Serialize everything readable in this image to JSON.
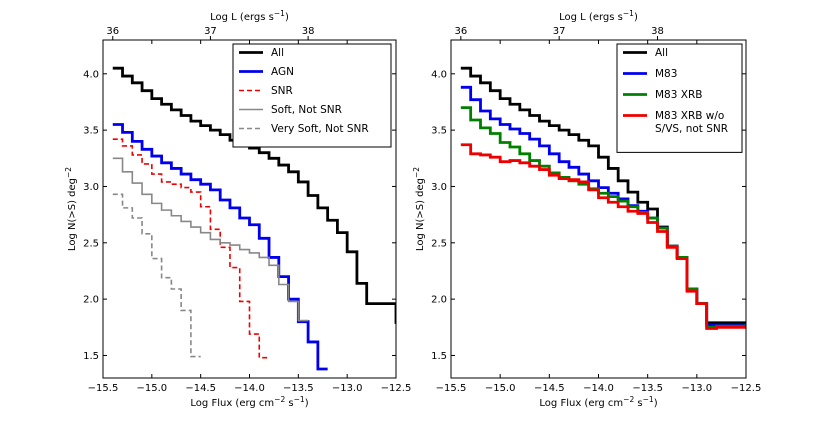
{
  "chart_data": [
    {
      "type": "line",
      "panel": "left",
      "xlabel": "Log Flux (erg cm$^{-2}$ s$^{-1}$)",
      "xlabel_parts": [
        "Log Flux (erg cm",
        "−2",
        " s",
        "−1",
        ")"
      ],
      "ylabel_parts": [
        "Log N(>S) deg",
        "−2"
      ],
      "top_xlabel_parts": [
        "Log L (ergs s",
        "−1",
        ")"
      ],
      "xlim": [
        -15.5,
        -12.5
      ],
      "ylim": [
        1.3,
        4.3
      ],
      "xticks": [
        -15.5,
        -15.0,
        -14.5,
        -14.0,
        -13.5,
        -13.0,
        -12.5
      ],
      "xtick_labels": [
        "−15.5",
        "−15.0",
        "−14.5",
        "−14.0",
        "−13.5",
        "−13.0",
        "−12.5"
      ],
      "yticks": [
        1.5,
        2.0,
        2.5,
        3.0,
        3.5,
        4.0
      ],
      "ytick_labels": [
        "1.5",
        "2.0",
        "2.5",
        "3.0",
        "3.5",
        "4.0"
      ],
      "top_ticks_flux": [
        -15.4,
        -14.4,
        -13.4
      ],
      "top_tick_labels": [
        "36",
        "37",
        "38"
      ],
      "legend_position": "top-right",
      "series": [
        {
          "name": "All",
          "color": "#000000",
          "style": "solid",
          "width": 2.8,
          "x": [
            -15.4,
            -15.3,
            -15.2,
            -15.1,
            -15.0,
            -14.9,
            -14.8,
            -14.7,
            -14.6,
            -14.5,
            -14.4,
            -14.3,
            -14.2,
            -14.1,
            -14.0,
            -13.9,
            -13.8,
            -13.7,
            -13.6,
            -13.5,
            -13.4,
            -13.3,
            -13.2,
            -13.1,
            -13.0,
            -12.9,
            -12.8,
            -12.5
          ],
          "y": [
            4.05,
            3.98,
            3.92,
            3.85,
            3.78,
            3.73,
            3.68,
            3.63,
            3.58,
            3.54,
            3.5,
            3.46,
            3.41,
            3.38,
            3.34,
            3.3,
            3.25,
            3.19,
            3.13,
            3.04,
            2.92,
            2.81,
            2.7,
            2.59,
            2.42,
            2.14,
            1.96,
            1.78
          ]
        },
        {
          "name": "AGN",
          "color": "#0000ee",
          "style": "solid",
          "width": 2.8,
          "x": [
            -15.4,
            -15.3,
            -15.2,
            -15.1,
            -15.0,
            -14.9,
            -14.8,
            -14.7,
            -14.6,
            -14.5,
            -14.4,
            -14.3,
            -14.2,
            -14.1,
            -14.0,
            -13.9,
            -13.8,
            -13.7,
            -13.6,
            -13.5,
            -13.4,
            -13.3,
            -13.2
          ],
          "y": [
            3.55,
            3.48,
            3.4,
            3.33,
            3.27,
            3.21,
            3.16,
            3.11,
            3.06,
            3.02,
            2.97,
            2.88,
            2.81,
            2.72,
            2.66,
            2.54,
            2.37,
            2.2,
            2.0,
            1.8,
            1.62,
            1.38,
            1.38
          ]
        },
        {
          "name": "SNR",
          "color": "#ee0000",
          "style": "dashed",
          "width": 1.6,
          "x": [
            -15.4,
            -15.3,
            -15.2,
            -15.1,
            -15.0,
            -14.9,
            -14.8,
            -14.7,
            -14.6,
            -14.5,
            -14.4,
            -14.3,
            -14.2,
            -14.1,
            -14.0,
            -13.9,
            -13.8
          ],
          "y": [
            3.42,
            3.36,
            3.28,
            3.2,
            3.11,
            3.04,
            3.02,
            2.99,
            2.95,
            2.82,
            2.62,
            2.46,
            2.28,
            1.98,
            1.69,
            1.48,
            1.48
          ]
        },
        {
          "name": "Soft, Not SNR",
          "color": "#888888",
          "style": "solid",
          "width": 1.6,
          "x": [
            -15.4,
            -15.3,
            -15.2,
            -15.1,
            -15.0,
            -14.9,
            -14.8,
            -14.7,
            -14.6,
            -14.5,
            -14.4,
            -14.3,
            -14.2,
            -14.1,
            -14.0,
            -13.9,
            -13.8,
            -13.7,
            -13.6,
            -13.5,
            -13.4
          ],
          "y": [
            3.25,
            3.13,
            3.03,
            2.93,
            2.85,
            2.79,
            2.74,
            2.69,
            2.64,
            2.59,
            2.53,
            2.5,
            2.48,
            2.44,
            2.41,
            2.37,
            2.3,
            2.13,
            1.98,
            1.81,
            1.81
          ]
        },
        {
          "name": "Very Soft, Not SNR",
          "color": "#888888",
          "style": "dashed",
          "width": 1.6,
          "x": [
            -15.4,
            -15.3,
            -15.2,
            -15.1,
            -15.0,
            -14.9,
            -14.8,
            -14.7,
            -14.6,
            -14.5
          ],
          "y": [
            2.93,
            2.81,
            2.72,
            2.58,
            2.36,
            2.19,
            2.09,
            1.9,
            1.49,
            1.49
          ]
        }
      ]
    },
    {
      "type": "line",
      "panel": "right",
      "xlabel": "Log Flux (erg cm$^{-2}$ s$^{-1}$)",
      "xlabel_parts": [
        "Log Flux (erg cm",
        "−2",
        " s",
        "−1",
        ")"
      ],
      "ylabel_parts": [
        "Log N(>S) deg",
        "−2"
      ],
      "top_xlabel_parts": [
        "Log L (ergs s",
        "−1",
        ")"
      ],
      "xlim": [
        -15.5,
        -12.5
      ],
      "ylim": [
        1.3,
        4.3
      ],
      "xticks": [
        -15.5,
        -15.0,
        -14.5,
        -14.0,
        -13.5,
        -13.0,
        -12.5
      ],
      "xtick_labels": [
        "−15.5",
        "−15.0",
        "−14.5",
        "−14.0",
        "−13.5",
        "−13.0",
        "−12.5"
      ],
      "yticks": [
        1.5,
        2.0,
        2.5,
        3.0,
        3.5,
        4.0
      ],
      "ytick_labels": [
        "1.5",
        "2.0",
        "2.5",
        "3.0",
        "3.5",
        "4.0"
      ],
      "top_ticks_flux": [
        -15.4,
        -14.4,
        -13.4
      ],
      "top_tick_labels": [
        "36",
        "37",
        "38"
      ],
      "legend_position": "top-right",
      "series": [
        {
          "name": "All",
          "color": "#000000",
          "style": "solid",
          "width": 2.8,
          "x": [
            -15.4,
            -15.3,
            -15.2,
            -15.1,
            -15.0,
            -14.9,
            -14.8,
            -14.7,
            -14.6,
            -14.5,
            -14.4,
            -14.3,
            -14.2,
            -14.1,
            -14.0,
            -13.9,
            -13.8,
            -13.7,
            -13.6,
            -13.5,
            -13.4,
            -13.3,
            -13.2,
            -13.1,
            -13.0,
            -12.9,
            -12.8,
            -12.5
          ],
          "y": [
            4.05,
            3.98,
            3.92,
            3.85,
            3.78,
            3.73,
            3.68,
            3.63,
            3.58,
            3.54,
            3.5,
            3.46,
            3.41,
            3.36,
            3.26,
            3.16,
            3.05,
            2.95,
            2.86,
            2.8,
            2.64,
            2.47,
            2.37,
            2.09,
            1.96,
            1.79,
            1.79,
            1.79
          ]
        },
        {
          "name": "M83",
          "color": "#0000ee",
          "style": "solid",
          "width": 2.8,
          "x": [
            -15.4,
            -15.3,
            -15.2,
            -15.1,
            -15.0,
            -14.9,
            -14.8,
            -14.7,
            -14.6,
            -14.5,
            -14.4,
            -14.3,
            -14.2,
            -14.1,
            -14.0,
            -13.9,
            -13.8,
            -13.7,
            -13.6,
            -13.5,
            -13.4,
            -13.3,
            -13.2,
            -13.1,
            -13.0,
            -12.9,
            -12.8,
            -12.5
          ],
          "y": [
            3.88,
            3.77,
            3.67,
            3.6,
            3.55,
            3.51,
            3.47,
            3.42,
            3.36,
            3.29,
            3.22,
            3.17,
            3.11,
            3.05,
            2.99,
            2.94,
            2.89,
            2.83,
            2.78,
            2.72,
            2.63,
            2.47,
            2.37,
            2.09,
            1.96,
            1.77,
            1.77,
            1.77
          ]
        },
        {
          "name": "M83 XRB",
          "color": "#008000",
          "style": "solid",
          "width": 2.8,
          "x": [
            -15.4,
            -15.3,
            -15.2,
            -15.1,
            -15.0,
            -14.9,
            -14.8,
            -14.7,
            -14.6,
            -14.5,
            -14.4,
            -14.3,
            -14.2,
            -14.1,
            -14.0,
            -13.9,
            -13.8,
            -13.7,
            -13.6,
            -13.5,
            -13.4,
            -13.3,
            -13.2,
            -13.1,
            -13.0,
            -12.9,
            -12.8,
            -12.5
          ],
          "y": [
            3.7,
            3.59,
            3.52,
            3.47,
            3.39,
            3.35,
            3.29,
            3.23,
            3.18,
            3.12,
            3.08,
            3.05,
            3.02,
            2.98,
            2.94,
            2.91,
            2.87,
            2.82,
            2.77,
            2.72,
            2.63,
            2.47,
            2.37,
            2.09,
            1.96,
            1.75,
            1.76,
            1.78
          ]
        },
        {
          "name": "M83 XRB w/o\nS/VS, not SNR",
          "color": "#ee0000",
          "style": "solid",
          "width": 2.8,
          "x": [
            -15.4,
            -15.3,
            -15.2,
            -15.1,
            -15.0,
            -14.9,
            -14.8,
            -14.7,
            -14.6,
            -14.5,
            -14.4,
            -14.3,
            -14.2,
            -14.1,
            -14.0,
            -13.9,
            -13.8,
            -13.7,
            -13.6,
            -13.5,
            -13.4,
            -13.3,
            -13.2,
            -13.1,
            -13.0,
            -12.9,
            -12.8,
            -12.5
          ],
          "y": [
            3.37,
            3.29,
            3.28,
            3.26,
            3.22,
            3.23,
            3.21,
            3.18,
            3.15,
            3.1,
            3.07,
            3.06,
            3.04,
            2.97,
            2.9,
            2.86,
            2.82,
            2.78,
            2.76,
            2.68,
            2.6,
            2.46,
            2.36,
            2.07,
            1.96,
            1.74,
            1.75,
            1.77
          ]
        }
      ]
    }
  ]
}
